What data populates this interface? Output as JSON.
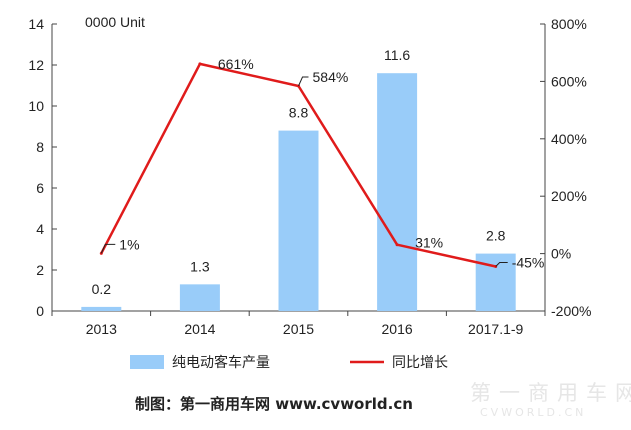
{
  "chart_data": {
    "type": "bar",
    "unit": "0000 Unit",
    "categories": [
      "2013",
      "2014",
      "2015",
      "2016",
      "2017.1-9"
    ],
    "bar_series": {
      "name": "纯电动客车产量",
      "values": [
        0.2,
        1.3,
        8.8,
        11.6,
        2.8
      ],
      "labels": [
        "0.2",
        "1.3",
        "8.8",
        "11.6",
        "2.8"
      ],
      "color": "#99ccf9"
    },
    "line_series": {
      "name": "同比增长",
      "values": [
        1,
        661,
        584,
        31,
        -45
      ],
      "labels": [
        "1%",
        "661%",
        "584%",
        "31%",
        "-45%"
      ],
      "color": "#e01b1b"
    },
    "y_left": {
      "ylim": [
        0,
        14
      ],
      "ticks": [
        0,
        2,
        4,
        6,
        8,
        10,
        12,
        14
      ],
      "tick_labels": [
        "0",
        "2",
        "4",
        "6",
        "8",
        "10",
        "12",
        "14"
      ]
    },
    "y_right": {
      "ylim": [
        -200,
        800
      ],
      "ticks": [
        -200,
        0,
        200,
        400,
        600,
        800
      ],
      "tick_labels": [
        "-200%",
        "0%",
        "200%",
        "400%",
        "600%",
        "800%"
      ]
    },
    "grid": false,
    "legend_position": "bottom"
  },
  "credit": "制图：第一商用车网 www.cvworld.cn",
  "watermark": {
    "cn": "第一商用车网",
    "en": "CVWORLD.CN"
  }
}
